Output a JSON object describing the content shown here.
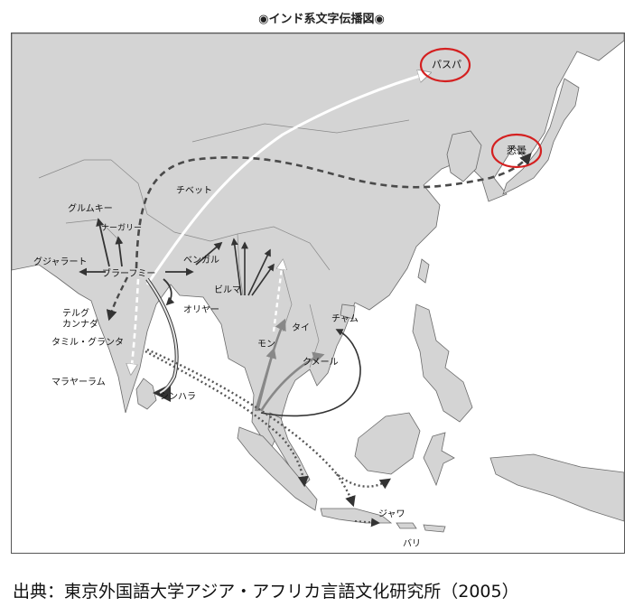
{
  "title": "◉インド系文字伝播図◉",
  "labels": {
    "paspa": "パスパ",
    "akubo": "悉曇",
    "tibet": "チベット",
    "gurmukhi": "グルムキー",
    "nagari": "ナーガリー",
    "gujarati": "グジャラート",
    "brahmi": "ブラーフミー",
    "bengal": "ベンガル",
    "telugu": "テルグ",
    "kannada": "カンナダ",
    "oriya": "オリヤー",
    "burma": "ビルマ",
    "cham": "チャム",
    "tamil": "タミル・グランタ",
    "thai": "タイ",
    "mon": "モン",
    "khmer": "クメール",
    "malayalam": "マラヤーラム",
    "sinhala": "シンハラ",
    "java": "ジャワ",
    "bali": "バリ"
  },
  "source": "出典：東京外国語大学アジア・アフリカ言語文化研究所（2005）"
}
